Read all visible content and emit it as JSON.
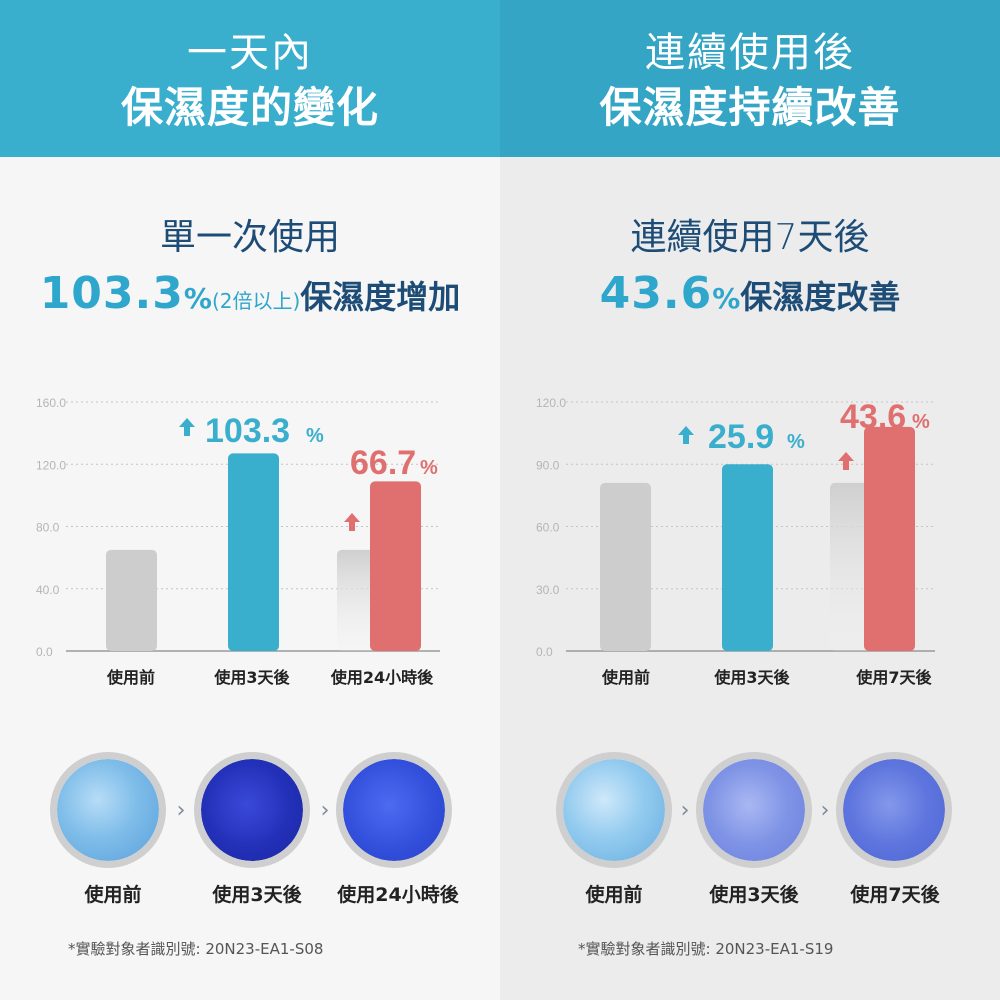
{
  "left": {
    "header_line1": "一天內",
    "header_line2": "保濕度的變化",
    "subtitle": "單一次使用",
    "stat_number": "103.3",
    "stat_percent": "%",
    "stat_note": "(2倍以上)",
    "stat_tail": "保濕度增加",
    "circle_labels": [
      "使用前",
      "使用3天後",
      "使用24小時後"
    ],
    "footnote": "*實驗對象者識別號: 20N23-EA1-S08"
  },
  "right": {
    "header_line1": "連續使用後",
    "header_line2": "保濕度持續改善",
    "subtitle": "連續使用7天後",
    "stat_number": "43.6",
    "stat_percent": "%",
    "stat_tail": "保濕度改善",
    "circle_labels": [
      "使用前",
      "使用3天後",
      "使用7天後"
    ],
    "footnote": "*實驗對象者識別號: 20N23-EA1-S19"
  },
  "colors": {
    "header_blue": "#3aaecd",
    "accent_blue": "#3aaecd",
    "accent_red": "#e07070",
    "bar_gray": "#cdcdcd",
    "text_navy": "#1d4c76"
  },
  "icons": [
    "up-arrow-icon",
    "chevron-right-icon"
  ],
  "chart_data": [
    {
      "type": "bar",
      "categories": [
        "使用前",
        "使用3天後",
        "使用24小時後"
      ],
      "yticks": [
        "0.0",
        "40.0",
        "80.0",
        "120.0",
        "160.0"
      ],
      "ylim": [
        0,
        160
      ],
      "bars": [
        {
          "category": "使用前",
          "value": 65,
          "color": "gray"
        },
        {
          "category": "使用3天後",
          "value": 127,
          "color": "blue",
          "label": "103.3",
          "label_unit": "%"
        },
        {
          "category": "使用24小時後",
          "value": 65,
          "color": "gray-fade"
        },
        {
          "category": "使用24小時後",
          "value": 109,
          "color": "red",
          "label": "66.7",
          "label_unit": "%"
        }
      ],
      "grid": true
    },
    {
      "type": "bar",
      "categories": [
        "使用前",
        "使用3天後",
        "使用7天後"
      ],
      "yticks": [
        "0.0",
        "30.0",
        "60.0",
        "90.0",
        "120.0"
      ],
      "ylim": [
        0,
        120
      ],
      "bars": [
        {
          "category": "使用前",
          "value": 81,
          "color": "gray"
        },
        {
          "category": "使用3天後",
          "value": 90,
          "color": "blue",
          "label": "25.9",
          "label_unit": "%"
        },
        {
          "category": "使用7天後",
          "value": 81,
          "color": "gray-fade"
        },
        {
          "category": "使用7天後",
          "value": 108,
          "color": "red",
          "label": "43.6",
          "label_unit": "%"
        }
      ],
      "grid": true
    }
  ]
}
